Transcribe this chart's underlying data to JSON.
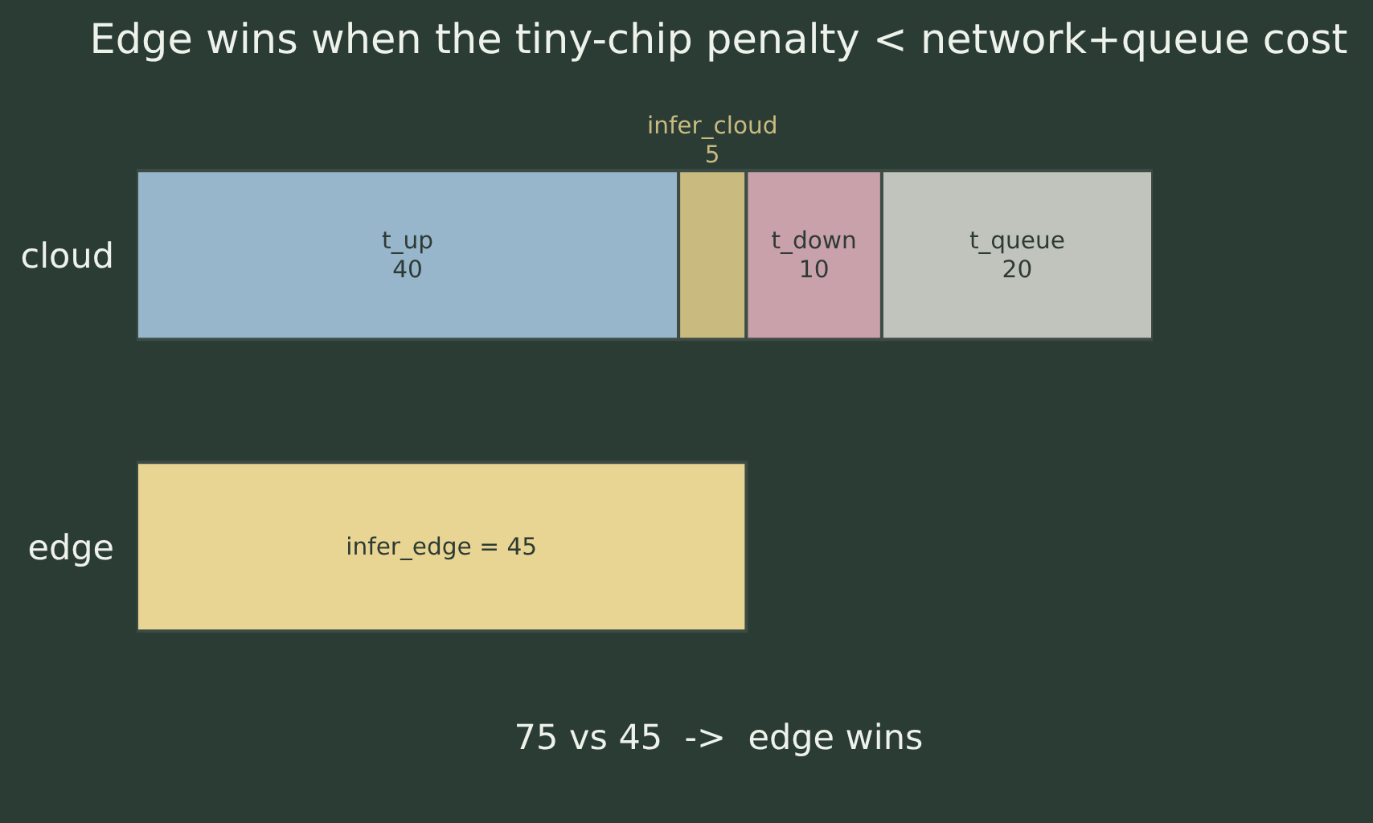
{
  "chart_data": {
    "type": "bar",
    "orientation": "horizontal",
    "stacked": true,
    "title": "Edge wins when the tiny-chip penalty < network+queue cost",
    "categories": [
      "cloud",
      "edge"
    ],
    "series": [
      {
        "name": "t_up",
        "color": "#97b6cb",
        "values": [
          40,
          null
        ],
        "value_labels": [
          "40",
          null
        ]
      },
      {
        "name": "infer_cloud",
        "color": "#c9ba80",
        "values": [
          5,
          null
        ],
        "value_labels": [
          "5",
          null
        ]
      },
      {
        "name": "t_down",
        "color": "#c9a1ab",
        "values": [
          10,
          null
        ],
        "value_labels": [
          "10",
          null
        ]
      },
      {
        "name": "t_queue",
        "color": "#c1c4bc",
        "values": [
          20,
          null
        ],
        "value_labels": [
          "20",
          null
        ]
      },
      {
        "color": "#e8d593",
        "values": [
          null,
          45
        ],
        "value_labels": [
          null,
          "infer_edge = 45"
        ]
      }
    ],
    "annotations": [
      "75 vs 45  ->  edge wins"
    ]
  }
}
